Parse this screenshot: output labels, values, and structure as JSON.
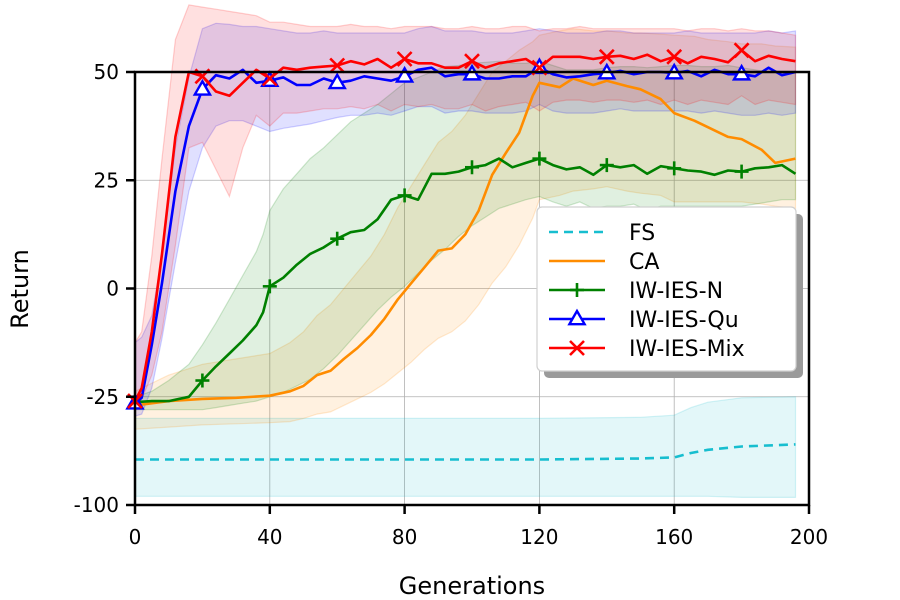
{
  "chart_data": {
    "type": "line",
    "title": "",
    "xlabel": "Generations",
    "ylabel": "Return",
    "xlim": [
      0,
      200
    ],
    "x_ticks": [
      {
        "value": 0,
        "label": "0"
      },
      {
        "value": 40,
        "label": "40"
      },
      {
        "value": 80,
        "label": "80"
      },
      {
        "value": 120,
        "label": "120"
      },
      {
        "value": 160,
        "label": "160"
      },
      {
        "value": 200,
        "label": "200"
      }
    ],
    "y_axis_scale": "nonuniform: band positions 0..4 map to labels",
    "y_ticks": [
      {
        "pos": 0,
        "label": "-100"
      },
      {
        "pos": 1,
        "label": "-25"
      },
      {
        "pos": 2,
        "label": "0"
      },
      {
        "pos": 3,
        "label": "25"
      },
      {
        "pos": 4,
        "label": "50"
      }
    ],
    "grid": true,
    "legend_position": "center-right",
    "series": [
      {
        "name": "FS",
        "color": "#17becf",
        "dash": "dashed",
        "marker": "none",
        "x": [
          0,
          40,
          80,
          120,
          150,
          160,
          165,
          170,
          180,
          196
        ],
        "y": [
          0.42,
          0.42,
          0.42,
          0.42,
          0.43,
          0.44,
          0.48,
          0.51,
          0.54,
          0.56
        ],
        "band_upper": [
          0.8,
          0.8,
          0.8,
          0.8,
          0.81,
          0.83,
          0.9,
          0.95,
          0.99,
          1.0
        ],
        "band_lower": [
          0.08,
          0.08,
          0.08,
          0.08,
          0.08,
          0.08,
          0.08,
          0.08,
          0.07,
          0.07
        ]
      },
      {
        "name": "CA",
        "color": "#ff8c00",
        "dash": "solid",
        "marker": "none",
        "x": [
          0,
          10,
          20,
          30,
          40,
          46,
          50,
          54,
          58,
          62,
          66,
          70,
          74,
          78,
          82,
          86,
          90,
          94,
          98,
          102,
          106,
          110,
          114,
          118,
          120,
          126,
          130,
          136,
          140,
          146,
          150,
          156,
          160,
          166,
          170,
          176,
          180,
          186,
          190,
          196
        ],
        "y": [
          0.92,
          0.96,
          0.98,
          0.99,
          1.01,
          1.05,
          1.1,
          1.2,
          1.24,
          1.35,
          1.45,
          1.57,
          1.72,
          1.9,
          2.05,
          2.2,
          2.35,
          2.37,
          2.5,
          2.72,
          3.05,
          3.25,
          3.44,
          3.78,
          3.9,
          3.86,
          3.94,
          3.88,
          3.92,
          3.87,
          3.84,
          3.75,
          3.62,
          3.55,
          3.49,
          3.4,
          3.38,
          3.28,
          3.16,
          3.2
        ],
        "band_upper": [
          1.05,
          1.2,
          1.3,
          1.35,
          1.4,
          1.5,
          1.6,
          1.75,
          1.85,
          2.0,
          2.15,
          2.3,
          2.5,
          2.75,
          2.95,
          3.15,
          3.35,
          3.45,
          3.6,
          3.8,
          4.0,
          4.1,
          4.2,
          4.28,
          4.34,
          4.38,
          4.4,
          4.38,
          4.38,
          4.36,
          4.36,
          4.35,
          4.34,
          4.33,
          4.3,
          4.28,
          4.26,
          4.26,
          4.24,
          4.23
        ],
        "band_lower": [
          0.7,
          0.72,
          0.74,
          0.75,
          0.76,
          0.77,
          0.8,
          0.84,
          0.86,
          0.92,
          0.98,
          1.04,
          1.12,
          1.22,
          1.32,
          1.44,
          1.54,
          1.6,
          1.7,
          1.85,
          2.05,
          2.2,
          2.4,
          2.65,
          2.82,
          2.86,
          2.9,
          2.92,
          2.94,
          2.9,
          2.88,
          2.86,
          2.8,
          2.8,
          2.8,
          2.8,
          2.8,
          2.78,
          2.76,
          2.74
        ]
      },
      {
        "name": "IW-IES-N",
        "color": "#008000",
        "dash": "solid",
        "marker": "plus",
        "marker_x": [
          20,
          40,
          60,
          80,
          100,
          120,
          140,
          160,
          180
        ],
        "x": [
          0,
          5,
          10,
          16,
          20,
          24,
          28,
          32,
          36,
          38,
          40,
          44,
          48,
          52,
          56,
          60,
          64,
          68,
          72,
          76,
          80,
          84,
          88,
          92,
          96,
          100,
          104,
          108,
          112,
          116,
          120,
          124,
          128,
          132,
          136,
          140,
          144,
          148,
          152,
          156,
          160,
          164,
          168,
          172,
          176,
          180,
          184,
          188,
          192,
          196
        ],
        "y": [
          0.95,
          0.96,
          0.96,
          1.0,
          1.15,
          1.28,
          1.4,
          1.52,
          1.66,
          1.78,
          2.02,
          2.1,
          2.22,
          2.32,
          2.38,
          2.46,
          2.52,
          2.54,
          2.64,
          2.82,
          2.86,
          2.82,
          3.06,
          3.06,
          3.08,
          3.12,
          3.14,
          3.2,
          3.12,
          3.16,
          3.2,
          3.14,
          3.1,
          3.12,
          3.05,
          3.14,
          3.12,
          3.14,
          3.06,
          3.13,
          3.11,
          3.09,
          3.08,
          3.05,
          3.09,
          3.08,
          3.11,
          3.12,
          3.14,
          3.06
        ],
        "band_upper": [
          1.0,
          1.05,
          1.15,
          1.3,
          1.48,
          1.68,
          1.9,
          2.12,
          2.34,
          2.5,
          2.72,
          2.92,
          3.06,
          3.2,
          3.3,
          3.42,
          3.54,
          3.62,
          3.7,
          3.8,
          3.9,
          3.95,
          4.0,
          4.05,
          4.06,
          4.08,
          4.09,
          4.1,
          4.08,
          4.08,
          4.1,
          4.06,
          4.02,
          4.02,
          4.02,
          4.04,
          4.05,
          4.05,
          4.04,
          4.05,
          4.06,
          4.06,
          4.05,
          4.05,
          4.06,
          4.04,
          4.02,
          4.0,
          4.0,
          4.0
        ],
        "band_lower": [
          0.88,
          0.88,
          0.88,
          0.88,
          0.88,
          0.9,
          0.92,
          0.94,
          0.96,
          0.98,
          1.0,
          1.04,
          1.1,
          1.16,
          1.26,
          1.38,
          1.52,
          1.66,
          1.8,
          1.92,
          2.02,
          2.14,
          2.26,
          2.36,
          2.48,
          2.58,
          2.66,
          2.74,
          2.78,
          2.82,
          2.85,
          2.8,
          2.76,
          2.8,
          2.74,
          2.76,
          2.76,
          2.78,
          2.72,
          2.76,
          2.76,
          2.76,
          2.76,
          2.76,
          2.76,
          2.76,
          2.78,
          2.8,
          2.82,
          2.82
        ]
      },
      {
        "name": "IW-IES-Qu",
        "color": "#0000ff",
        "dash": "solid",
        "marker": "triangle",
        "marker_x": [
          0,
          20,
          40,
          60,
          80,
          100,
          120,
          140,
          160,
          180
        ],
        "x": [
          0,
          2,
          5,
          8,
          12,
          16,
          20,
          24,
          28,
          32,
          36,
          40,
          44,
          48,
          52,
          56,
          60,
          64,
          68,
          72,
          76,
          80,
          84,
          88,
          92,
          96,
          100,
          104,
          108,
          112,
          116,
          120,
          124,
          128,
          132,
          136,
          140,
          144,
          148,
          152,
          156,
          160,
          164,
          168,
          172,
          176,
          180,
          184,
          188,
          192,
          196
        ],
        "y": [
          0.94,
          0.99,
          1.48,
          2.05,
          2.9,
          3.5,
          3.84,
          3.97,
          3.94,
          4.02,
          3.9,
          3.92,
          3.95,
          3.88,
          3.88,
          3.94,
          3.9,
          3.92,
          3.96,
          3.94,
          3.92,
          3.96,
          4.02,
          4.04,
          3.96,
          3.98,
          3.98,
          3.94,
          3.94,
          3.96,
          3.96,
          4.04,
          3.98,
          3.95,
          3.96,
          3.98,
          3.99,
          4.01,
          3.98,
          4.0,
          4.0,
          3.99,
          4.01,
          3.96,
          4.02,
          3.98,
          3.98,
          3.96,
          4.04,
          3.97,
          4.0
        ],
        "band_upper": [
          1.5,
          1.55,
          1.75,
          2.3,
          3.3,
          3.95,
          4.4,
          4.45,
          4.44,
          4.42,
          4.42,
          4.4,
          4.38,
          4.36,
          4.36,
          4.38,
          4.36,
          4.36,
          4.36,
          4.36,
          4.36,
          4.36,
          4.4,
          4.42,
          4.38,
          4.38,
          4.38,
          4.36,
          4.36,
          4.36,
          4.38,
          4.4,
          4.38,
          4.36,
          4.36,
          4.36,
          4.38,
          4.38,
          4.36,
          4.36,
          4.36,
          4.36,
          4.38,
          4.36,
          4.36,
          4.36,
          4.36,
          4.36,
          4.38,
          4.36,
          4.38
        ],
        "band_lower": [
          0.82,
          0.84,
          1.08,
          1.54,
          2.24,
          2.9,
          3.3,
          3.5,
          3.55,
          3.55,
          3.5,
          3.45,
          3.48,
          3.5,
          3.52,
          3.55,
          3.58,
          3.6,
          3.6,
          3.62,
          3.6,
          3.64,
          3.68,
          3.68,
          3.62,
          3.64,
          3.64,
          3.62,
          3.62,
          3.62,
          3.64,
          3.7,
          3.64,
          3.62,
          3.62,
          3.62,
          3.64,
          3.66,
          3.64,
          3.64,
          3.64,
          3.64,
          3.64,
          3.62,
          3.64,
          3.62,
          3.6,
          3.6,
          3.62,
          3.6,
          3.62
        ]
      },
      {
        "name": "IW-IES-Mix",
        "color": "#ff0000",
        "dash": "solid",
        "marker": "x",
        "marker_x": [
          0,
          20,
          40,
          60,
          80,
          100,
          120,
          140,
          160,
          180
        ],
        "x": [
          0,
          2,
          5,
          8,
          12,
          16,
          20,
          24,
          28,
          32,
          36,
          40,
          44,
          48,
          52,
          56,
          60,
          64,
          68,
          72,
          76,
          80,
          84,
          88,
          92,
          96,
          100,
          104,
          108,
          112,
          116,
          120,
          124,
          128,
          132,
          136,
          140,
          144,
          148,
          152,
          156,
          160,
          164,
          168,
          172,
          176,
          180,
          184,
          188,
          192,
          196
        ],
        "y": [
          0.96,
          1.08,
          1.6,
          2.32,
          3.4,
          4.0,
          3.96,
          3.82,
          3.78,
          3.9,
          4.02,
          3.94,
          4.04,
          4.02,
          4.04,
          4.05,
          4.06,
          4.1,
          4.07,
          4.12,
          4.04,
          4.12,
          4.08,
          4.08,
          4.04,
          4.04,
          4.1,
          4.04,
          4.08,
          4.1,
          4.12,
          4.04,
          4.14,
          4.14,
          4.14,
          4.12,
          4.14,
          4.15,
          4.12,
          4.16,
          4.1,
          4.14,
          4.08,
          4.14,
          4.12,
          4.09,
          4.2,
          4.1,
          4.15,
          4.12,
          4.1
        ],
        "band_upper": [
          1.5,
          1.6,
          2.3,
          3.2,
          4.3,
          4.62,
          4.6,
          4.58,
          4.56,
          4.54,
          4.52,
          4.46,
          4.46,
          4.44,
          4.42,
          4.42,
          4.42,
          4.44,
          4.42,
          4.42,
          4.4,
          4.42,
          4.42,
          4.42,
          4.4,
          4.4,
          4.42,
          4.4,
          4.4,
          4.42,
          4.42,
          4.38,
          4.4,
          4.4,
          4.42,
          4.4,
          4.4,
          4.4,
          4.4,
          4.4,
          4.4,
          4.4,
          4.38,
          4.4,
          4.4,
          4.38,
          4.4,
          4.38,
          4.38,
          4.36,
          4.34
        ],
        "band_lower": [
          0.9,
          0.98,
          1.2,
          1.6,
          2.4,
          3.3,
          3.35,
          3.1,
          2.85,
          3.3,
          3.6,
          3.5,
          3.62,
          3.62,
          3.64,
          3.66,
          3.66,
          3.68,
          3.66,
          3.7,
          3.64,
          3.7,
          3.68,
          3.7,
          3.66,
          3.66,
          3.7,
          3.64,
          3.68,
          3.7,
          3.72,
          3.64,
          3.72,
          3.74,
          3.74,
          3.72,
          3.74,
          3.74,
          3.72,
          3.74,
          3.7,
          3.74,
          3.7,
          3.74,
          3.72,
          3.7,
          3.78,
          3.7,
          3.74,
          3.72,
          3.7
        ]
      }
    ]
  }
}
